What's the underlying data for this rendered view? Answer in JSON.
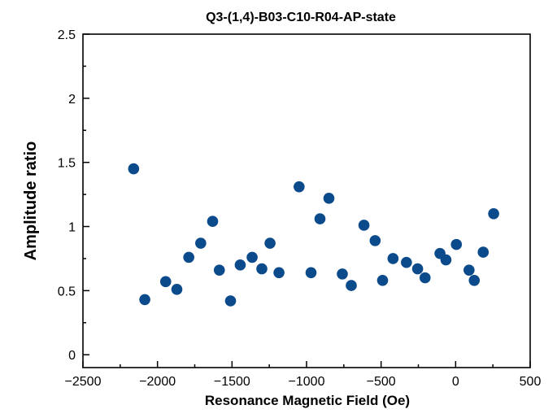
{
  "chart_data": {
    "type": "scatter",
    "title": "Q3-(1,4)-B03-C10-R04-AP-state",
    "xlabel": "Resonance Magnetic Field (Oe)",
    "ylabel": "Amplitude ratio",
    "xlim": [
      -2500,
      500
    ],
    "ylim": [
      -0.1,
      2.5
    ],
    "xticks": [
      -2500,
      -2000,
      -1500,
      -1000,
      -500,
      0,
      500
    ],
    "xtick_labels": [
      "−2500",
      "−2000",
      "−1500",
      "−1000",
      "−500",
      "0",
      "500"
    ],
    "yticks": [
      0,
      0.5,
      1,
      1.5,
      2,
      2.5
    ],
    "ytick_labels": [
      "0",
      "0.5",
      "1",
      "1.5",
      "2",
      "2.5"
    ],
    "grid": false,
    "marker_color": "#0b4a8b",
    "series": [
      {
        "x": [
          -2160,
          -2085,
          -1945,
          -1870,
          -1790,
          -1710,
          -1630,
          -1585,
          -1510,
          -1445,
          -1365,
          -1300,
          -1245,
          -1185,
          -1050,
          -970,
          -910,
          -850,
          -760,
          -700,
          -615,
          -540,
          -490,
          -420,
          -330,
          -255,
          -205,
          -105,
          -65,
          5,
          90,
          125,
          185,
          255
        ],
        "y": [
          1.45,
          0.43,
          0.57,
          0.51,
          0.76,
          0.87,
          1.04,
          0.66,
          0.42,
          0.7,
          0.76,
          0.67,
          0.87,
          0.64,
          1.31,
          0.64,
          1.06,
          1.22,
          0.63,
          0.54,
          1.01,
          0.89,
          0.58,
          0.75,
          0.72,
          0.67,
          0.6,
          0.79,
          0.74,
          0.86,
          0.66,
          0.58,
          0.8,
          1.1
        ]
      }
    ]
  }
}
